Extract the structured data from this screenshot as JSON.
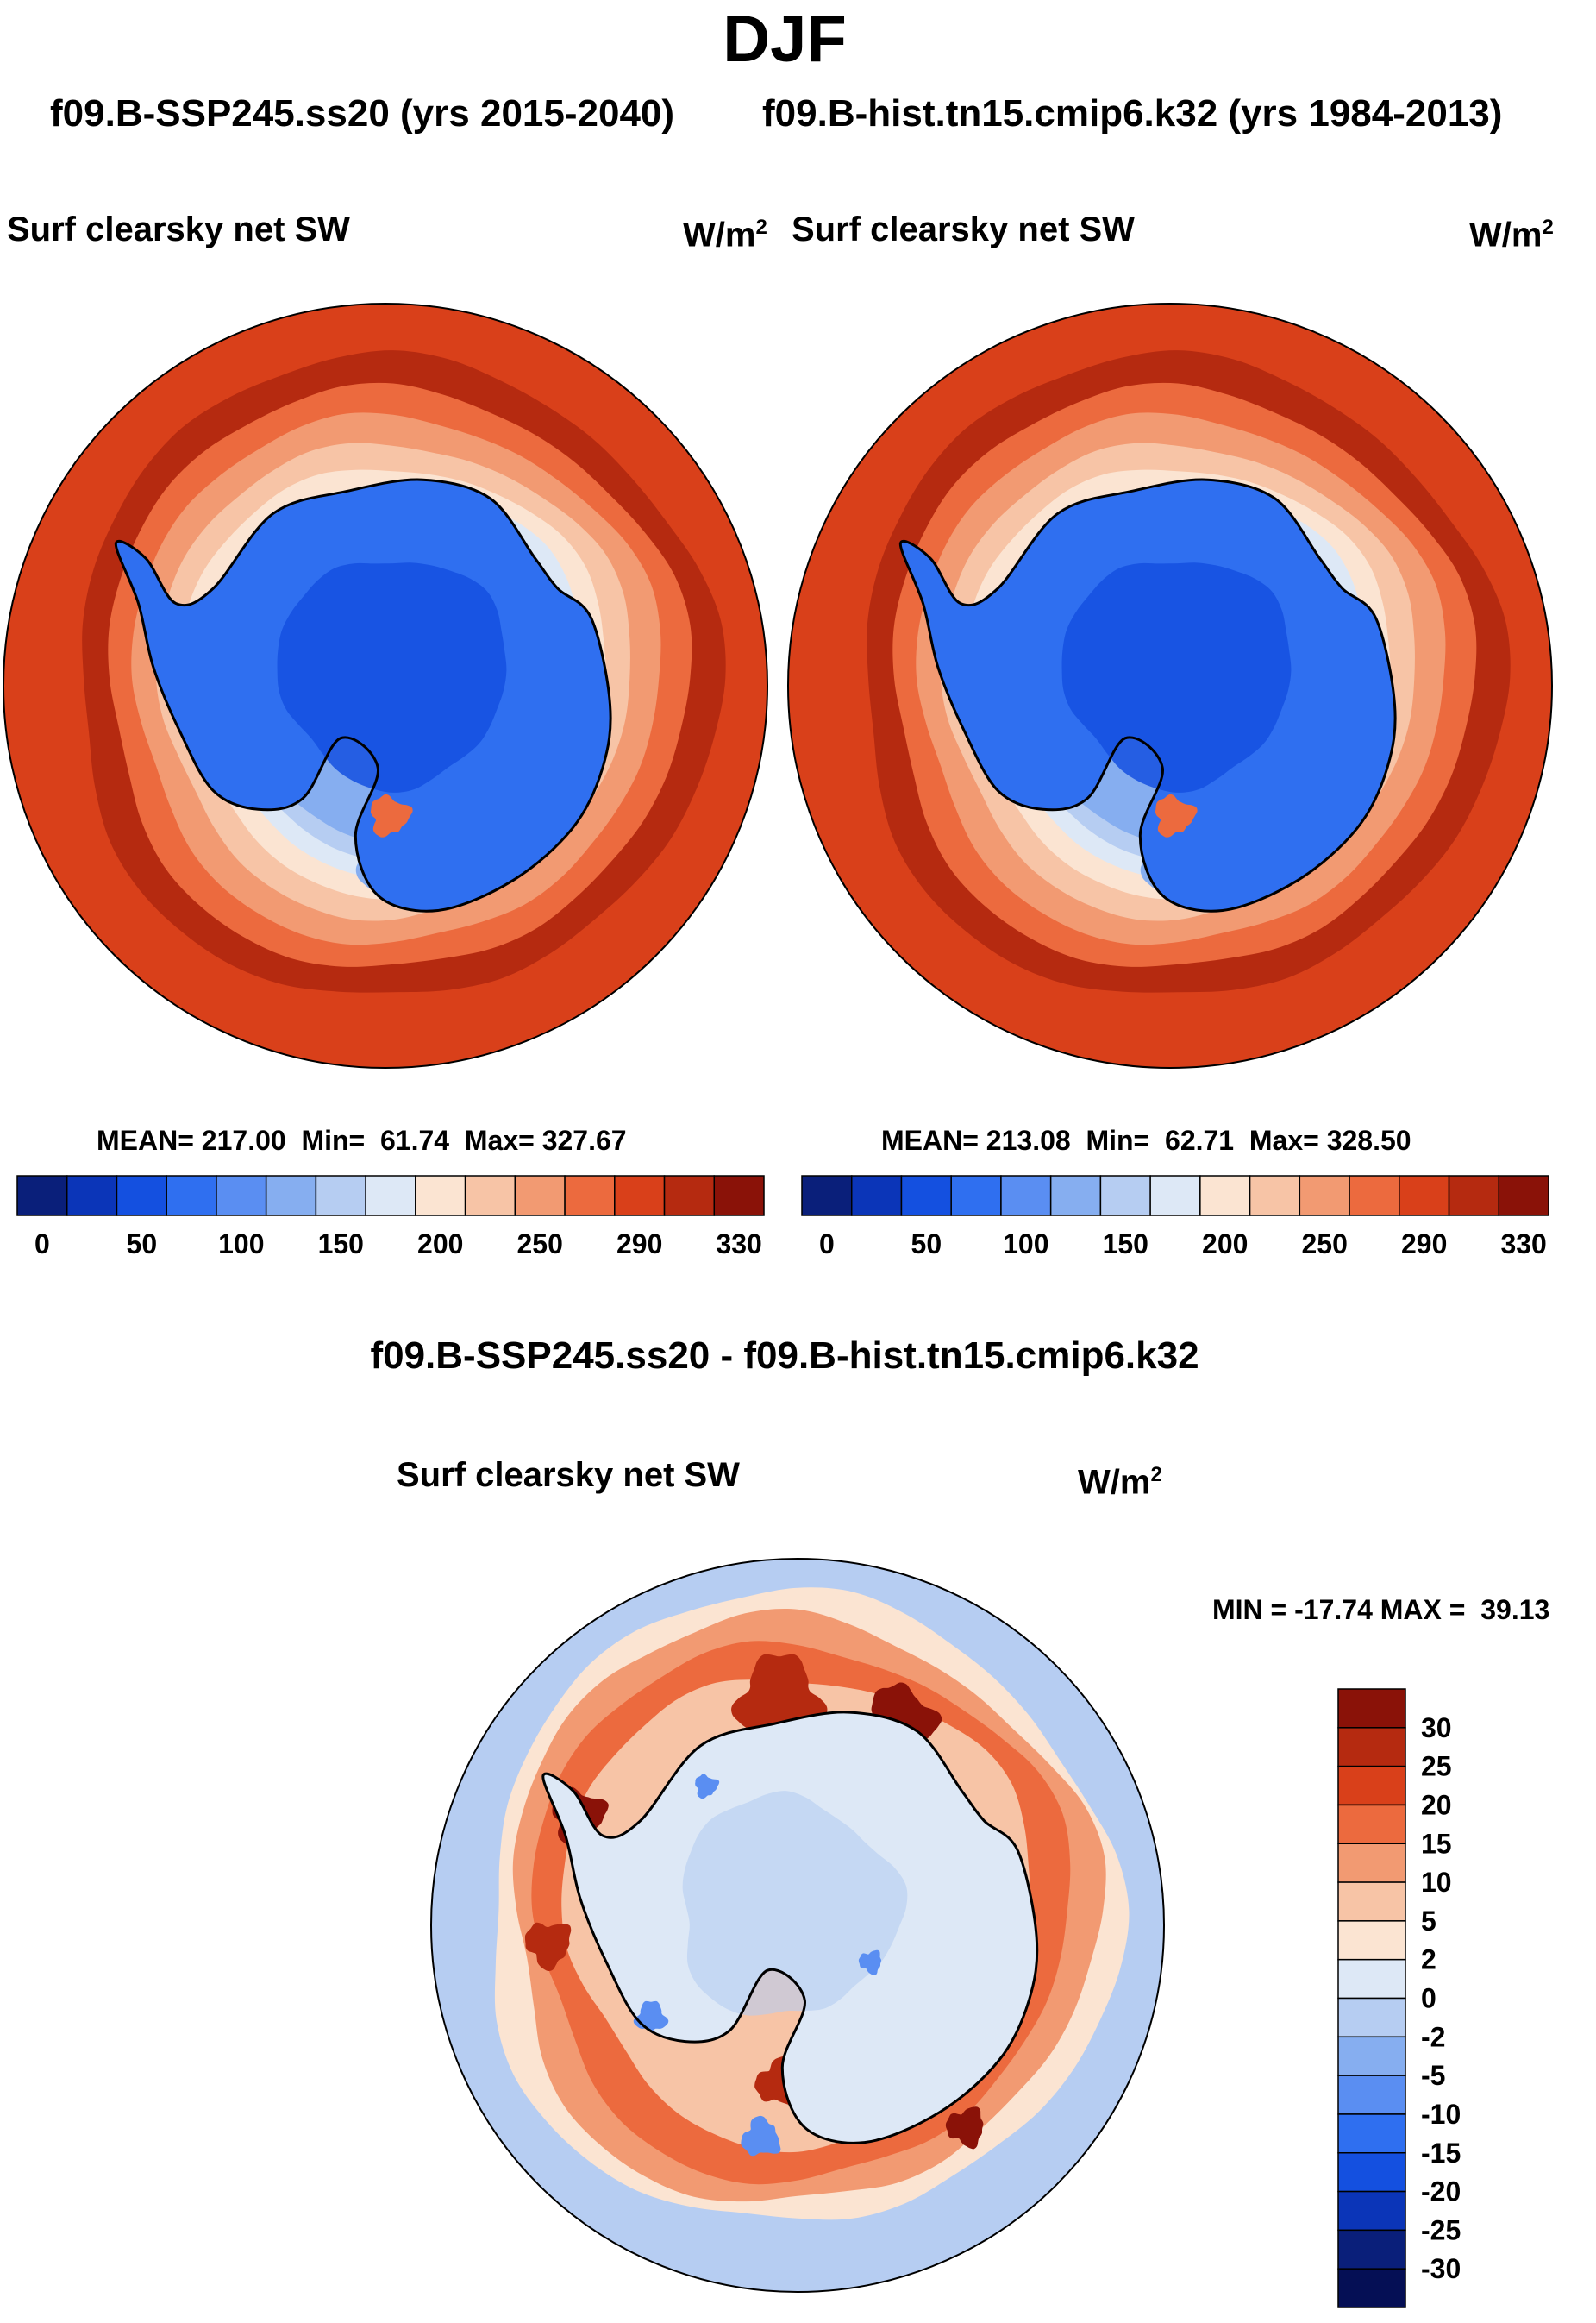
{
  "page": {
    "season": "DJF",
    "subtitle_left": "f09.B-SSP245.ss20 (yrs 2015-2040)",
    "subtitle_right": "f09.B-hist.tn15.cmip6.k32 (yrs 1984-2013)",
    "diff_title": "f09.B-SSP245.ss20 - f09.B-hist.tn15.cmip6.k32"
  },
  "panels": [
    {
      "id": "case",
      "variable": "Surf clearsky net SW",
      "units_base": "W/m",
      "units_exp": "2",
      "mean_label": "MEAN= 217.00",
      "min_label": "Min=  61.74",
      "max_label": "Max= 327.67"
    },
    {
      "id": "control",
      "variable": "Surf clearsky net SW",
      "units_base": "W/m",
      "units_exp": "2",
      "mean_label": "MEAN= 213.08",
      "min_label": "Min=  62.71",
      "max_label": "Max= 328.50"
    },
    {
      "id": "difference",
      "variable": "Surf clearsky net SW",
      "units_base": "W/m",
      "units_exp": "2",
      "minmax_label": "MIN = -17.74 MAX =  39.13"
    }
  ],
  "chart_data": [
    {
      "type": "heatmap",
      "projection": "south polar stereographic",
      "title": "Surf clearsky net SW",
      "units": "W/m2",
      "stats": {
        "mean": 217.0,
        "min": 61.74,
        "max": 327.67
      },
      "colorbar": {
        "orientation": "horizontal",
        "levels": [
          0,
          25,
          50,
          75,
          100,
          125,
          150,
          175,
          200,
          225,
          250,
          270,
          290,
          310,
          330
        ],
        "tick_labels": [
          "0",
          "50",
          "100",
          "150",
          "200",
          "250",
          "290",
          "330"
        ],
        "colors": [
          "#0a1f7a",
          "#0b35b8",
          "#1450e0",
          "#2f6ff0",
          "#5a8ef2",
          "#86aef0",
          "#b6cdf2",
          "#dde8f6",
          "#fbe4d2",
          "#f7c4a6",
          "#f29a72",
          "#ec6a3e",
          "#d9401a",
          "#b52a10",
          "#8a1208"
        ]
      }
    },
    {
      "type": "heatmap",
      "projection": "south polar stereographic",
      "title": "Surf clearsky net SW",
      "units": "W/m2",
      "stats": {
        "mean": 213.08,
        "min": 62.71,
        "max": 328.5
      },
      "colorbar": {
        "orientation": "horizontal",
        "levels": [
          0,
          25,
          50,
          75,
          100,
          125,
          150,
          175,
          200,
          225,
          250,
          270,
          290,
          310,
          330
        ],
        "tick_labels": [
          "0",
          "50",
          "100",
          "150",
          "200",
          "250",
          "290",
          "330"
        ],
        "colors": [
          "#0a1f7a",
          "#0b35b8",
          "#1450e0",
          "#2f6ff0",
          "#5a8ef2",
          "#86aef0",
          "#b6cdf2",
          "#dde8f6",
          "#fbe4d2",
          "#f7c4a6",
          "#f29a72",
          "#ec6a3e",
          "#d9401a",
          "#b52a10",
          "#8a1208"
        ]
      }
    },
    {
      "type": "heatmap",
      "projection": "south polar stereographic",
      "title": "Surf clearsky net SW",
      "units": "W/m2",
      "stats": {
        "min": -17.74,
        "max": 39.13
      },
      "colorbar": {
        "orientation": "vertical",
        "levels": [
          -30,
          -25,
          -20,
          -15,
          -10,
          -5,
          -2,
          0,
          2,
          5,
          10,
          15,
          20,
          25,
          30
        ],
        "tick_labels": [
          "30",
          "25",
          "20",
          "15",
          "10",
          "5",
          "2",
          "0",
          "-2",
          "-5",
          "-10",
          "-15",
          "-20",
          "-25",
          "-30"
        ],
        "colors": [
          "#8a1208",
          "#b52a10",
          "#d9401a",
          "#ec6a3e",
          "#f29a72",
          "#f7c4a6",
          "#fbe4d2",
          "#dde8f6",
          "#b6cdf2",
          "#86aef0",
          "#5a8ef2",
          "#2f6ff0",
          "#1450e0",
          "#0b35b8",
          "#0a1f7a",
          "#050f55"
        ]
      }
    }
  ]
}
